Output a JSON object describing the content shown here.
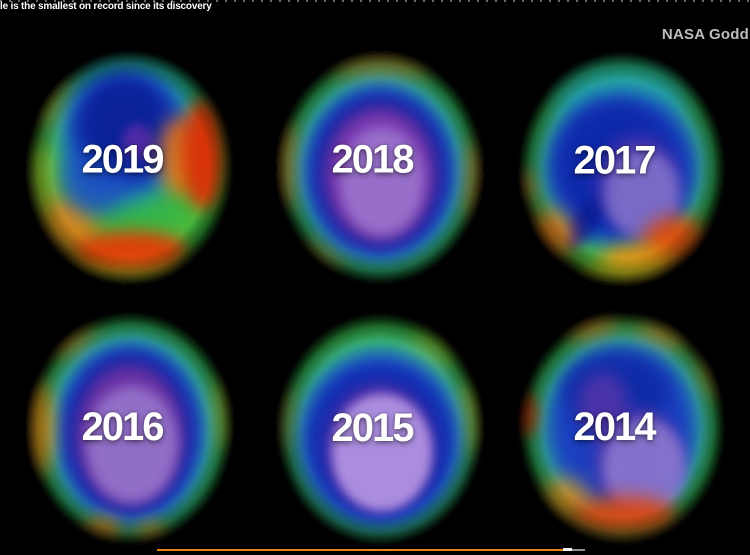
{
  "frame": {
    "caption": "le is the smallest on record since its discovery",
    "credit": "NASA Godd",
    "background_color": "#000000"
  },
  "globes": [
    {
      "year": "2019",
      "position": "top-left"
    },
    {
      "year": "2018",
      "position": "top-center"
    },
    {
      "year": "2017",
      "position": "top-right"
    },
    {
      "year": "2016",
      "position": "bottom-left"
    },
    {
      "year": "2015",
      "position": "bottom-center"
    },
    {
      "year": "2014",
      "position": "bottom-right"
    }
  ],
  "player": {
    "progress_bar": {
      "played_color": "#e8830d",
      "playhead_color": "#f2f2f2",
      "buffered_color": "#8f8f8f"
    }
  },
  "colors": {
    "year_text": "#ffffff",
    "caption_text": "#ffffff",
    "credit_text": "#bdbdbd"
  }
}
